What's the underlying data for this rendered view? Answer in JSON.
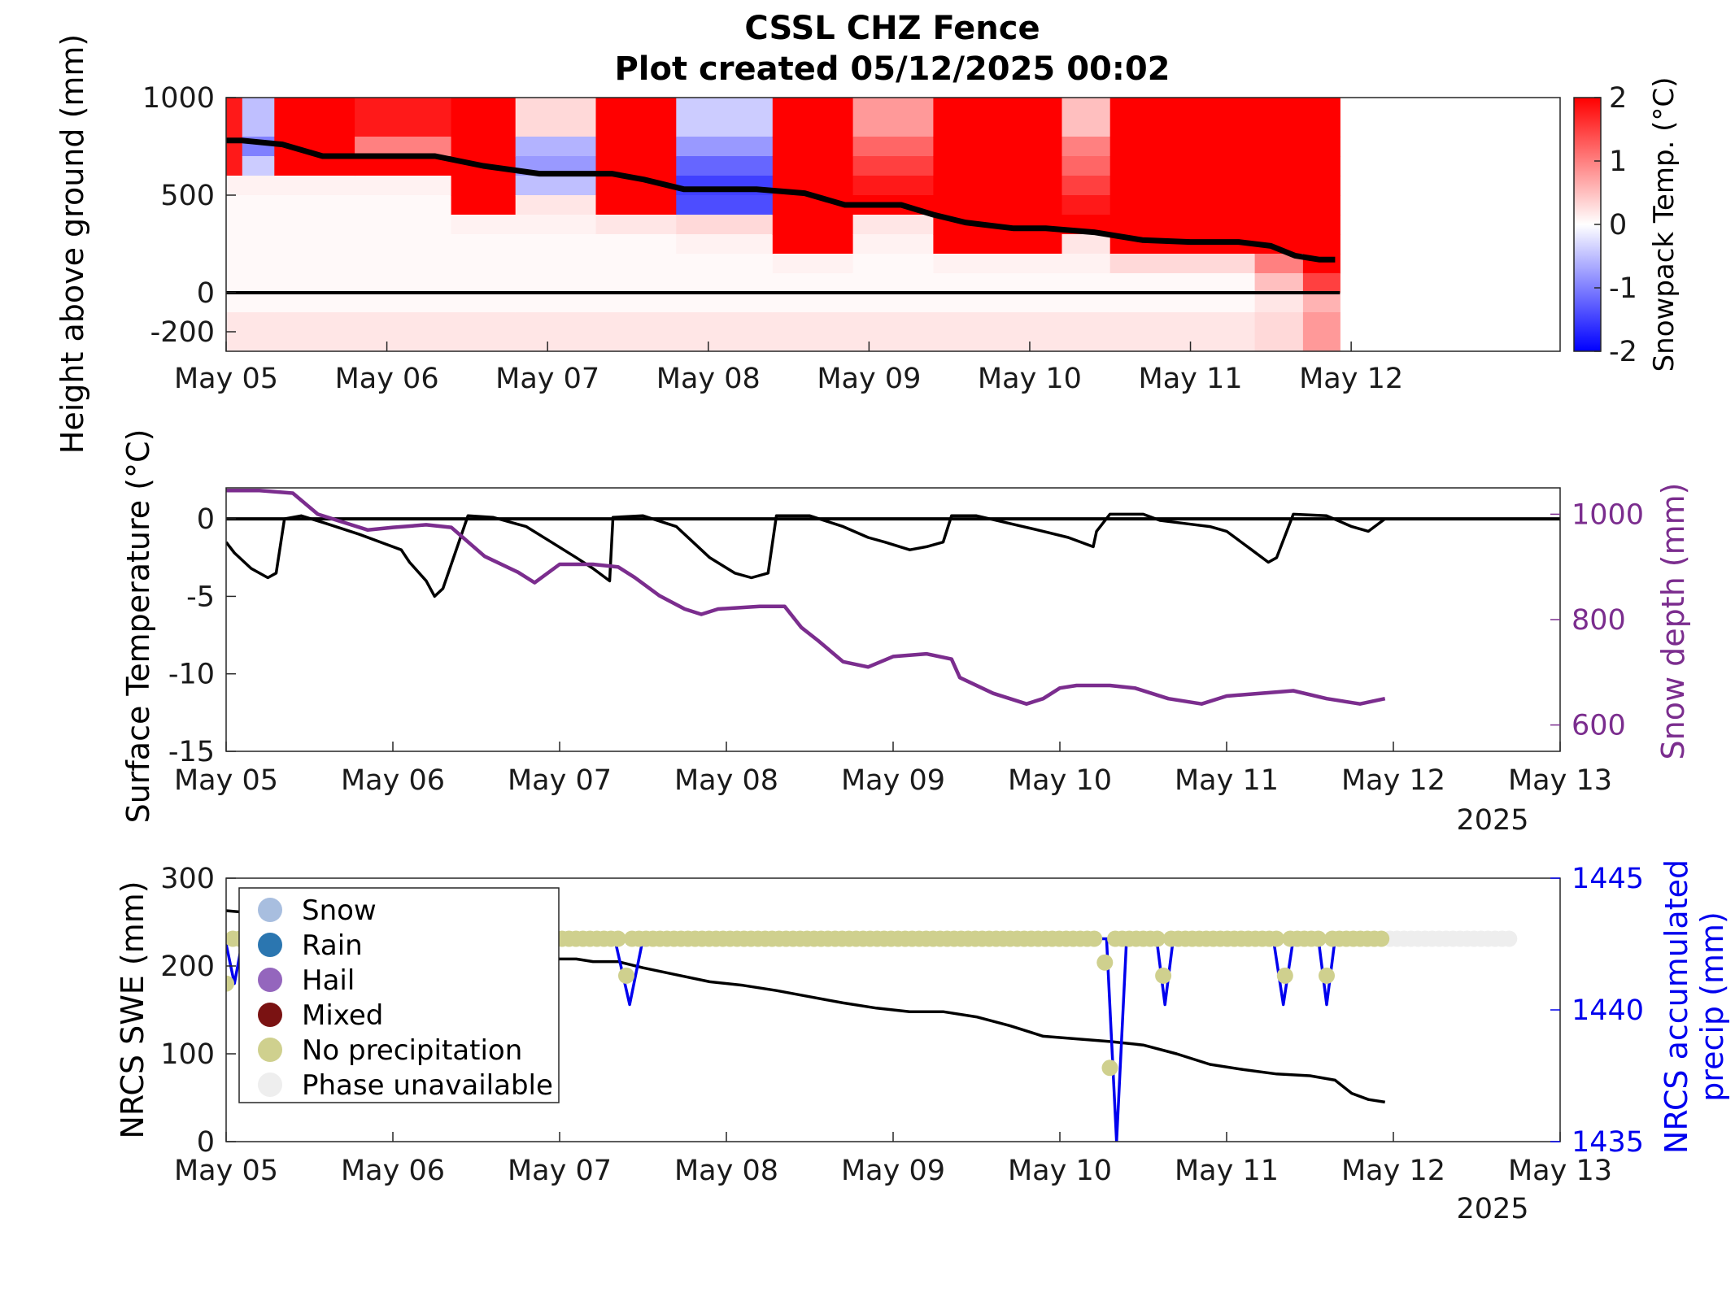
{
  "figure": {
    "title_line1": "CSSL CHZ Fence",
    "title_line2": "Plot created 05/12/2025 00:02",
    "year_label": "2025"
  },
  "chart_data": [
    {
      "type": "heatmap",
      "name": "snowpack-temperature",
      "ylabel": "Height above ground (mm)",
      "ylim": [
        -300,
        1000
      ],
      "yticks": [
        1000,
        500,
        0,
        -200
      ],
      "x_ticks": [
        "May 05",
        "May 06",
        "May 07",
        "May 08",
        "May 09",
        "May 10",
        "May 11",
        "May 12"
      ],
      "xlim_days": [
        5,
        13.3
      ],
      "colorbar": {
        "label": "Snowpack Temp. (°C)",
        "range": [
          -2,
          2
        ],
        "ticks": [
          2,
          1,
          0,
          -1,
          -2
        ]
      },
      "sensor_bins_mm": [
        [
          800,
          1000
        ],
        [
          700,
          800
        ],
        [
          600,
          700
        ],
        [
          500,
          600
        ],
        [
          400,
          500
        ],
        [
          300,
          400
        ],
        [
          200,
          300
        ],
        [
          100,
          200
        ],
        [
          0,
          100
        ],
        [
          -100,
          0
        ],
        [
          -300,
          -100
        ]
      ],
      "temperature_c": [
        {
          "day": 5.0,
          "values": [
            1.8,
            1.8,
            1.8,
            0.1,
            0.05,
            0.05,
            0.05,
            0.05,
            0.05,
            0.05,
            0.2
          ]
        },
        {
          "day": 5.1,
          "values": [
            -0.5,
            -1.0,
            -0.4,
            0.1,
            0.05,
            0.05,
            0.05,
            0.05,
            0.05,
            0.05,
            0.2
          ]
        },
        {
          "day": 5.3,
          "values": [
            2.0,
            2.0,
            2.0,
            0.1,
            0.05,
            0.05,
            0.05,
            0.05,
            0.05,
            0.05,
            0.2
          ]
        },
        {
          "day": 5.8,
          "values": [
            1.8,
            1.0,
            2.0,
            0.1,
            0.05,
            0.05,
            0.05,
            0.05,
            0.05,
            0.05,
            0.2
          ]
        },
        {
          "day": 6.4,
          "values": [
            2.0,
            2.0,
            2.0,
            2.0,
            2.0,
            0.1,
            0.05,
            0.05,
            0.05,
            0.05,
            0.2
          ]
        },
        {
          "day": 6.8,
          "values": [
            0.3,
            -0.6,
            -0.8,
            -0.5,
            0.2,
            0.1,
            0.05,
            0.05,
            0.05,
            0.05,
            0.2
          ]
        },
        {
          "day": 7.3,
          "values": [
            2.0,
            2.0,
            2.0,
            2.0,
            2.0,
            0.2,
            0.05,
            0.05,
            0.05,
            0.05,
            0.2
          ]
        },
        {
          "day": 7.8,
          "values": [
            -0.4,
            -0.8,
            -1.2,
            -1.5,
            -1.4,
            0.3,
            0.1,
            0.05,
            0.05,
            0.05,
            0.2
          ]
        },
        {
          "day": 8.4,
          "values": [
            2.0,
            2.0,
            2.0,
            2.0,
            2.0,
            2.0,
            2.0,
            0.1,
            0.05,
            0.05,
            0.2
          ]
        },
        {
          "day": 8.9,
          "values": [
            0.8,
            1.2,
            1.5,
            1.8,
            2.0,
            0.2,
            0.1,
            0.05,
            0.05,
            0.05,
            0.2
          ]
        },
        {
          "day": 9.4,
          "values": [
            2.0,
            2.0,
            2.0,
            2.0,
            2.0,
            2.0,
            2.0,
            0.1,
            0.05,
            0.05,
            0.2
          ]
        },
        {
          "day": 10.2,
          "values": [
            0.5,
            1.0,
            1.2,
            1.5,
            1.8,
            2.0,
            0.2,
            0.1,
            0.05,
            0.05,
            0.2
          ]
        },
        {
          "day": 10.5,
          "values": [
            2.0,
            2.0,
            2.0,
            2.0,
            2.0,
            2.0,
            2.0,
            0.3,
            0.05,
            0.05,
            0.2
          ]
        },
        {
          "day": 11.4,
          "values": [
            2.0,
            2.0,
            2.0,
            2.0,
            2.0,
            2.0,
            2.0,
            1.0,
            0.5,
            0.2,
            0.3
          ]
        },
        {
          "day": 11.7,
          "values": [
            2.0,
            2.0,
            2.0,
            2.0,
            2.0,
            2.0,
            2.0,
            2.0,
            1.5,
            0.6,
            0.8
          ]
        }
      ],
      "snow_height_line": {
        "x_days": [
          5.0,
          5.1,
          5.35,
          5.6,
          5.8,
          6.0,
          6.3,
          6.6,
          6.95,
          7.2,
          7.4,
          7.6,
          7.85,
          8.0,
          8.3,
          8.6,
          8.85,
          9.2,
          9.4,
          9.6,
          9.9,
          10.1,
          10.4,
          10.7,
          11.0,
          11.3,
          11.5,
          11.65,
          11.8,
          11.9
        ],
        "y_mm": [
          780,
          780,
          760,
          700,
          700,
          700,
          700,
          650,
          610,
          610,
          610,
          580,
          530,
          530,
          530,
          510,
          450,
          450,
          400,
          360,
          330,
          330,
          310,
          270,
          260,
          260,
          240,
          190,
          170,
          170
        ]
      }
    },
    {
      "type": "line",
      "name": "surface-temp-and-snow-depth",
      "ylabel": "Surface Temperature (°C)",
      "ylim": [
        -15,
        2
      ],
      "yticks": [
        0,
        -5,
        -10,
        -15
      ],
      "y2label": "Snow depth (mm)",
      "y2lim": [
        550,
        1050
      ],
      "y2ticks": [
        1000,
        800,
        600
      ],
      "x_ticks": [
        "May 05",
        "May 06",
        "May 07",
        "May 08",
        "May 09",
        "May 10",
        "May 11",
        "May 12",
        "May 13"
      ],
      "xlim_days": [
        5,
        13
      ],
      "series": [
        {
          "axis": "left",
          "color": "#000000",
          "x_days": [
            5.0,
            5.05,
            5.15,
            5.25,
            5.3,
            5.35,
            5.45,
            5.6,
            5.8,
            5.95,
            6.05,
            6.1,
            6.2,
            6.25,
            6.3,
            6.45,
            6.6,
            6.8,
            6.95,
            7.1,
            7.2,
            7.3,
            7.32,
            7.5,
            7.7,
            7.8,
            7.9,
            8.05,
            8.15,
            8.25,
            8.3,
            8.5,
            8.7,
            8.85,
            8.95,
            9.1,
            9.2,
            9.3,
            9.35,
            9.5,
            9.7,
            9.9,
            10.05,
            10.2,
            10.22,
            10.3,
            10.5,
            10.6,
            10.75,
            10.9,
            11.0,
            11.15,
            11.25,
            11.3,
            11.4,
            11.6,
            11.75,
            11.85,
            11.95
          ],
          "y": [
            -1.5,
            -2.2,
            -3.2,
            -3.8,
            -3.5,
            0.0,
            0.2,
            -0.3,
            -1.0,
            -1.6,
            -2.0,
            -2.8,
            -4.0,
            -5.0,
            -4.5,
            0.2,
            0.1,
            -0.5,
            -1.5,
            -2.5,
            -3.2,
            -4.0,
            0.1,
            0.2,
            -0.5,
            -1.5,
            -2.5,
            -3.5,
            -3.8,
            -3.5,
            0.2,
            0.2,
            -0.5,
            -1.2,
            -1.5,
            -2.0,
            -1.8,
            -1.5,
            0.2,
            0.2,
            -0.3,
            -0.8,
            -1.2,
            -1.8,
            -0.8,
            0.3,
            0.3,
            -0.1,
            -0.3,
            -0.5,
            -0.8,
            -2.0,
            -2.8,
            -2.5,
            0.3,
            0.2,
            -0.5,
            -0.8,
            0.0
          ]
        },
        {
          "axis": "right",
          "color": "#7b2d8e",
          "x_days": [
            5.0,
            5.2,
            5.4,
            5.55,
            5.7,
            5.85,
            6.0,
            6.2,
            6.35,
            6.55,
            6.75,
            6.85,
            7.0,
            7.2,
            7.35,
            7.45,
            7.6,
            7.75,
            7.85,
            7.95,
            8.2,
            8.35,
            8.45,
            8.55,
            8.7,
            8.85,
            9.0,
            9.2,
            9.35,
            9.4,
            9.6,
            9.8,
            9.9,
            10.0,
            10.1,
            10.3,
            10.45,
            10.65,
            10.85,
            11.0,
            11.2,
            11.4,
            11.6,
            11.8,
            11.95
          ],
          "y": [
            1045,
            1045,
            1040,
            1000,
            985,
            970,
            975,
            980,
            975,
            920,
            890,
            870,
            905,
            905,
            900,
            880,
            845,
            820,
            810,
            820,
            825,
            825,
            785,
            760,
            720,
            710,
            730,
            735,
            725,
            690,
            660,
            640,
            650,
            670,
            675,
            675,
            670,
            650,
            640,
            655,
            660,
            665,
            650,
            640,
            650
          ]
        }
      ]
    },
    {
      "type": "line",
      "name": "nrcs-swe-and-precip",
      "ylabel": "NRCS SWE (mm)",
      "ylim": [
        0,
        300
      ],
      "yticks": [
        300,
        200,
        100,
        0
      ],
      "y2label_line1": "NRCS accumulated",
      "y2label_line2": "precip (mm)",
      "y2lim": [
        1435,
        1445
      ],
      "y2ticks": [
        1445,
        1440,
        1435
      ],
      "x_ticks": [
        "May 05",
        "May 06",
        "May 07",
        "May 08",
        "May 09",
        "May 10",
        "May 11",
        "May 12",
        "May 13"
      ],
      "xlim_days": [
        5,
        13
      ],
      "series": [
        {
          "name": "SWE",
          "axis": "left",
          "color": "#000000",
          "x_days": [
            5.0,
            5.3,
            5.6,
            5.9,
            6.2,
            6.5,
            6.8,
            7.0,
            7.1,
            7.2,
            7.35,
            7.5,
            7.7,
            7.9,
            8.1,
            8.3,
            8.5,
            8.7,
            8.9,
            9.1,
            9.3,
            9.5,
            9.7,
            9.9,
            10.1,
            10.3,
            10.5,
            10.7,
            10.9,
            11.1,
            11.3,
            11.5,
            11.65,
            11.75,
            11.85,
            11.95
          ],
          "y": [
            263,
            258,
            253,
            248,
            240,
            230,
            220,
            208,
            208,
            205,
            205,
            198,
            190,
            182,
            178,
            172,
            165,
            158,
            152,
            148,
            148,
            142,
            132,
            120,
            117,
            114,
            110,
            100,
            88,
            82,
            77,
            75,
            70,
            55,
            48,
            45
          ]
        },
        {
          "name": "accumulated precip",
          "axis": "right",
          "color": "#0000ee",
          "x_days": [
            5.0,
            5.05,
            5.1,
            7.33,
            7.42,
            7.5,
            10.28,
            10.34,
            10.4,
            10.58,
            10.63,
            10.68,
            11.28,
            11.34,
            11.4,
            11.55,
            11.6,
            11.65,
            11.95
          ],
          "y": [
            1442.5,
            1441.0,
            1442.7,
            1442.7,
            1440.2,
            1442.7,
            1442.7,
            1435.0,
            1442.7,
            1442.7,
            1440.2,
            1442.7,
            1442.7,
            1440.2,
            1442.7,
            1442.7,
            1440.2,
            1442.7,
            1442.7
          ]
        }
      ],
      "phase_markers": {
        "no_precipitation_color": "#cfd08e",
        "unavailable_color": "#eeeeee",
        "x_start_days": 5.0,
        "x_end_days": 11.95,
        "unavailable_end_days": 12.7,
        "dips": [
          {
            "day": 5.0,
            "y2": 1441.0
          },
          {
            "day": 7.4,
            "y2": 1441.3
          },
          {
            "day": 10.3,
            "y2": 1437.8
          },
          {
            "day": 10.27,
            "y2": 1441.8
          },
          {
            "day": 10.62,
            "y2": 1441.3
          },
          {
            "day": 11.35,
            "y2": 1441.3
          },
          {
            "day": 11.6,
            "y2": 1441.3
          }
        ]
      },
      "legend": {
        "position": "upper-left",
        "entries": [
          {
            "label": "Snow",
            "color": "#a8bedf"
          },
          {
            "label": "Rain",
            "color": "#2b76b0"
          },
          {
            "label": "Hail",
            "color": "#9466bd"
          },
          {
            "label": "Mixed",
            "color": "#7a1212"
          },
          {
            "label": "No precipitation",
            "color": "#cfd08e"
          },
          {
            "label": "Phase unavailable",
            "color": "#eeeeee"
          }
        ]
      }
    }
  ]
}
